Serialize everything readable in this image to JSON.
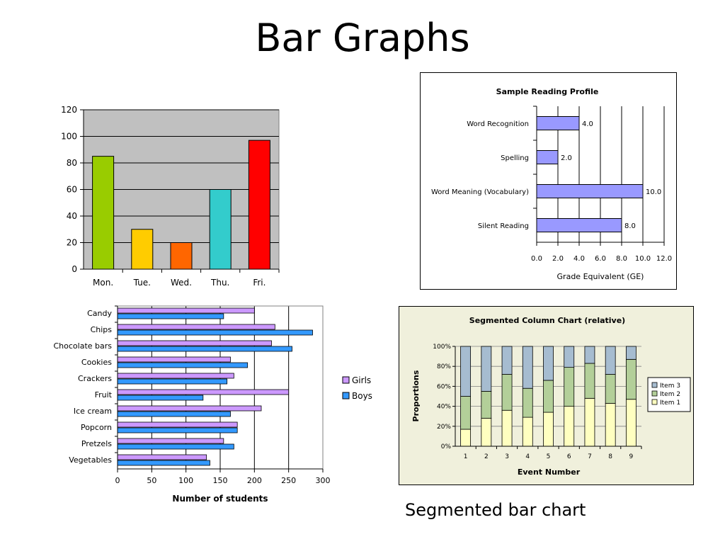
{
  "slide": {
    "title": "Bar Graphs",
    "caption": "Segmented bar chart"
  },
  "chart_data": [
    {
      "type": "bar",
      "title": "",
      "xlabel": "",
      "ylabel": "",
      "categories": [
        "Mon.",
        "Tue.",
        "Wed.",
        "Thu.",
        "Fri."
      ],
      "values": [
        85,
        30,
        20,
        60,
        97
      ],
      "colors": [
        "#99cc00",
        "#ffcc00",
        "#ff6600",
        "#33cccc",
        "#ff0000"
      ],
      "ylim": [
        0,
        120
      ],
      "yticks": [
        0,
        20,
        40,
        60,
        80,
        100,
        120
      ],
      "plot_background": "#c0c0c0",
      "grid": true,
      "legend": "none"
    },
    {
      "type": "bar",
      "orientation": "horizontal",
      "title": "Sample Reading Profile",
      "xlabel": "Grade Equivalent (GE)",
      "ylabel": "",
      "categories": [
        "Word Recognition",
        "Spelling",
        "Word Meaning (Vocabulary)",
        "Silent Reading"
      ],
      "values": [
        4.0,
        2.0,
        10.0,
        8.0
      ],
      "data_labels": [
        "4.0",
        "2.0",
        "10.0",
        "8.0"
      ],
      "xlim": [
        0,
        12
      ],
      "xticks": [
        "0.0",
        "2.0",
        "4.0",
        "6.0",
        "8.0",
        "10.0",
        "12.0"
      ],
      "color": "#9999ff",
      "grid": true,
      "legend": "none"
    },
    {
      "type": "bar",
      "orientation": "horizontal",
      "title": "",
      "xlabel": "Number of students",
      "ylabel": "",
      "categories": [
        "Candy",
        "Chips",
        "Chocolate bars",
        "Cookies",
        "Crackers",
        "Fruit",
        "Ice cream",
        "Popcorn",
        "Pretzels",
        "Vegetables"
      ],
      "series": [
        {
          "name": "Girls",
          "values": [
            200,
            230,
            225,
            165,
            170,
            250,
            210,
            175,
            155,
            130
          ],
          "color": "#cc99ff"
        },
        {
          "name": "Boys",
          "values": [
            155,
            285,
            255,
            190,
            160,
            125,
            165,
            175,
            170,
            135
          ],
          "color": "#3399ff"
        }
      ],
      "xlim": [
        0,
        300
      ],
      "xticks": [
        0,
        50,
        100,
        150,
        200,
        250,
        300
      ],
      "grid": true,
      "legend": "right"
    },
    {
      "type": "bar",
      "stacked": "percent",
      "title": "Segmented Column Chart (relative)",
      "xlabel": "Event Number",
      "ylabel": "Proportions",
      "categories": [
        "1",
        "2",
        "3",
        "4",
        "5",
        "6",
        "7",
        "8",
        "9"
      ],
      "series": [
        {
          "name": "Item 1",
          "values": [
            17,
            28,
            36,
            29,
            34,
            40,
            48,
            43,
            47
          ],
          "color": "#ffffc0"
        },
        {
          "name": "Item 2",
          "values": [
            33,
            27,
            36,
            29,
            32,
            39,
            35,
            29,
            40
          ],
          "color": "#b3cf99"
        },
        {
          "name": "Item 3",
          "values": [
            50,
            45,
            28,
            42,
            34,
            21,
            17,
            28,
            13
          ],
          "color": "#a6bcd0"
        }
      ],
      "ylim": [
        0,
        100
      ],
      "yticks": [
        "0%",
        "20%",
        "40%",
        "60%",
        "80%",
        "100%"
      ],
      "legend_order": [
        "Item 3",
        "Item 2",
        "Item 1"
      ],
      "plot_background": "#f0f0dc",
      "grid": true,
      "legend": "right"
    }
  ]
}
